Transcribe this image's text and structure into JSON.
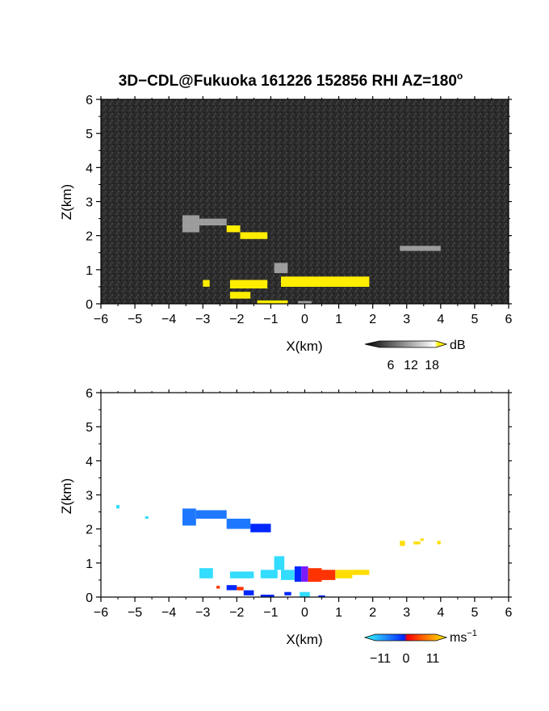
{
  "figure": {
    "title": "3D−CDL@Fukuoka 161226 152856 RHI AZ=180",
    "title_superscript": "o"
  },
  "colors": {
    "reflectivity_background": "#2b2b2b",
    "reflectivity_strong": "#ffee00",
    "reflectivity_weak": "#b0b0b0",
    "velocity_neg_far": "#0028ff",
    "velocity_neg_mid": "#1e78ff",
    "velocity_neg_near": "#33ddff",
    "velocity_zero": "#7a1aff",
    "velocity_pos_mid": "#ff3300",
    "velocity_pos_far": "#ffdd00"
  },
  "chart_data": [
    {
      "type": "heatmap",
      "name": "reflectivity",
      "title": "",
      "xlabel": "X(km)",
      "ylabel": "Z(km)",
      "xlim": [
        -6,
        6
      ],
      "ylim": [
        0,
        6
      ],
      "xticks": [
        "−6",
        "−5",
        "−4",
        "−3",
        "−2",
        "−1",
        "0",
        "1",
        "2",
        "3",
        "4",
        "5",
        "6"
      ],
      "yticks": [
        "0",
        "1",
        "2",
        "3",
        "4",
        "5",
        "6"
      ],
      "colorbar": {
        "unit": "dB",
        "ticks": [
          "6",
          "12",
          "18"
        ],
        "range": [
          0,
          21
        ]
      },
      "echoes": [
        {
          "x0": -3.6,
          "x1": -3.1,
          "z0": 2.1,
          "z1": 2.6,
          "level": "weak"
        },
        {
          "x0": -3.1,
          "x1": -2.3,
          "z0": 2.3,
          "z1": 2.5,
          "level": "weak"
        },
        {
          "x0": -2.3,
          "x1": -1.9,
          "z0": 2.1,
          "z1": 2.3,
          "level": "strong"
        },
        {
          "x0": -1.9,
          "x1": -1.1,
          "z0": 1.9,
          "z1": 2.1,
          "level": "strong"
        },
        {
          "x0": 2.8,
          "x1": 4.0,
          "z0": 1.55,
          "z1": 1.7,
          "level": "weak"
        },
        {
          "x0": -0.9,
          "x1": -0.5,
          "z0": 0.9,
          "z1": 1.2,
          "level": "weak"
        },
        {
          "x0": -0.7,
          "x1": 1.9,
          "z0": 0.5,
          "z1": 0.8,
          "level": "strong"
        },
        {
          "x0": -3.0,
          "x1": -2.8,
          "z0": 0.5,
          "z1": 0.7,
          "level": "strong"
        },
        {
          "x0": -2.2,
          "x1": -1.1,
          "z0": 0.45,
          "z1": 0.7,
          "level": "strong"
        },
        {
          "x0": -2.2,
          "x1": -1.6,
          "z0": 0.15,
          "z1": 0.35,
          "level": "strong"
        },
        {
          "x0": -1.4,
          "x1": -0.5,
          "z0": 0.0,
          "z1": 0.1,
          "level": "strong"
        },
        {
          "x0": -0.2,
          "x1": 0.2,
          "z0": 0.0,
          "z1": 0.08,
          "level": "weak"
        }
      ]
    },
    {
      "type": "heatmap",
      "name": "doppler_velocity",
      "title": "",
      "xlabel": "X(km)",
      "ylabel": "Z(km)",
      "xlim": [
        -6,
        6
      ],
      "ylim": [
        0,
        6
      ],
      "xticks": [
        "−6",
        "−5",
        "−4",
        "−3",
        "−2",
        "−1",
        "0",
        "1",
        "2",
        "3",
        "4",
        "5",
        "6"
      ],
      "yticks": [
        "0",
        "1",
        "2",
        "3",
        "4",
        "5",
        "6"
      ],
      "colorbar": {
        "unit": "ms",
        "unit_superscript": "−1",
        "ticks": [
          "−11",
          "0",
          "11"
        ],
        "range": [
          -15,
          15
        ]
      },
      "echoes": [
        {
          "x0": -5.55,
          "x1": -5.45,
          "z0": 2.6,
          "z1": 2.7,
          "v": -10
        },
        {
          "x0": -4.7,
          "x1": -4.6,
          "z0": 2.3,
          "z1": 2.37,
          "v": -10
        },
        {
          "x0": -3.6,
          "x1": -3.2,
          "z0": 2.1,
          "z1": 2.6,
          "v": -6
        },
        {
          "x0": -3.2,
          "x1": -2.3,
          "z0": 2.3,
          "z1": 2.55,
          "v": -6
        },
        {
          "x0": -2.3,
          "x1": -1.6,
          "z0": 2.0,
          "z1": 2.3,
          "v": -7
        },
        {
          "x0": -1.6,
          "x1": -1.0,
          "z0": 1.9,
          "z1": 2.15,
          "v": -12
        },
        {
          "x0": -3.1,
          "x1": -2.7,
          "z0": 0.55,
          "z1": 0.85,
          "v": -10
        },
        {
          "x0": -2.2,
          "x1": -1.5,
          "z0": 0.55,
          "z1": 0.75,
          "v": -9
        },
        {
          "x0": -1.3,
          "x1": -0.8,
          "z0": 0.55,
          "z1": 0.8,
          "v": -10
        },
        {
          "x0": -0.9,
          "x1": -0.6,
          "z0": 0.8,
          "z1": 1.2,
          "v": -9
        },
        {
          "x0": -0.7,
          "x1": -0.3,
          "z0": 0.5,
          "z1": 0.8,
          "v": -10
        },
        {
          "x0": -0.3,
          "x1": -0.1,
          "z0": 0.45,
          "z1": 0.9,
          "v": -13
        },
        {
          "x0": -0.1,
          "x1": 0.1,
          "z0": 0.45,
          "z1": 0.9,
          "v": 0
        },
        {
          "x0": 0.1,
          "x1": 0.5,
          "z0": 0.45,
          "z1": 0.85,
          "v": 4
        },
        {
          "x0": 0.5,
          "x1": 0.9,
          "z0": 0.5,
          "z1": 0.8,
          "v": 7
        },
        {
          "x0": 0.9,
          "x1": 1.4,
          "z0": 0.55,
          "z1": 0.8,
          "v": 9
        },
        {
          "x0": 1.4,
          "x1": 1.9,
          "z0": 0.65,
          "z1": 0.8,
          "v": 11
        },
        {
          "x0": -2.3,
          "x1": -2.0,
          "z0": 0.2,
          "z1": 0.35,
          "v": -13
        },
        {
          "x0": -2.0,
          "x1": -1.8,
          "z0": 0.2,
          "z1": 0.3,
          "v": 6
        },
        {
          "x0": -2.6,
          "x1": -2.5,
          "z0": 0.25,
          "z1": 0.33,
          "v": 6
        },
        {
          "x0": -1.8,
          "x1": -1.5,
          "z0": 0.05,
          "z1": 0.2,
          "v": -13
        },
        {
          "x0": -1.3,
          "x1": -0.9,
          "z0": 0.0,
          "z1": 0.07,
          "v": -13
        },
        {
          "x0": -0.6,
          "x1": -0.4,
          "z0": 0.05,
          "z1": 0.15,
          "v": -13
        },
        {
          "x0": -0.15,
          "x1": 0.15,
          "z0": 0.0,
          "z1": 0.15,
          "v": -10
        },
        {
          "x0": 0.4,
          "x1": 0.6,
          "z0": 0.0,
          "z1": 0.05,
          "v": -13
        },
        {
          "x0": 2.8,
          "x1": 2.95,
          "z0": 1.5,
          "z1": 1.65,
          "v": 12
        },
        {
          "x0": 3.2,
          "x1": 3.4,
          "z0": 1.55,
          "z1": 1.63,
          "v": 12
        },
        {
          "x0": 3.4,
          "x1": 3.5,
          "z0": 1.65,
          "z1": 1.72,
          "v": 12
        },
        {
          "x0": 3.9,
          "x1": 4.0,
          "z0": 1.55,
          "z1": 1.65,
          "v": 12
        }
      ]
    }
  ]
}
